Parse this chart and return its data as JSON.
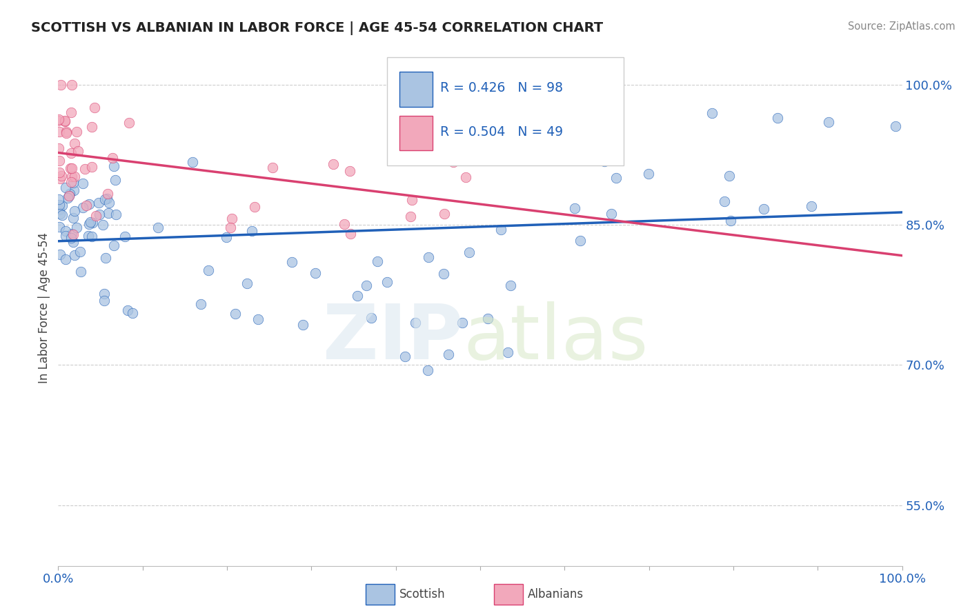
{
  "title": "SCOTTISH VS ALBANIAN IN LABOR FORCE | AGE 45-54 CORRELATION CHART",
  "source": "Source: ZipAtlas.com",
  "ylabel": "In Labor Force | Age 45-54",
  "scottish_R": 0.426,
  "scottish_N": 98,
  "albanian_R": 0.504,
  "albanian_N": 49,
  "scottish_color": "#aac4e2",
  "albanian_color": "#f2a8bb",
  "scottish_line_color": "#2060b8",
  "albanian_line_color": "#d94070",
  "background_color": "#ffffff",
  "grid_color": "#cccccc",
  "y_ticks": [
    0.55,
    0.7,
    0.85,
    1.0
  ],
  "y_tick_labels": [
    "55.0%",
    "70.0%",
    "85.0%",
    "100.0%"
  ],
  "x_tick_labels": [
    "0.0%",
    "",
    "",
    "",
    "",
    "",
    "",
    "",
    "",
    "",
    "100.0%"
  ]
}
